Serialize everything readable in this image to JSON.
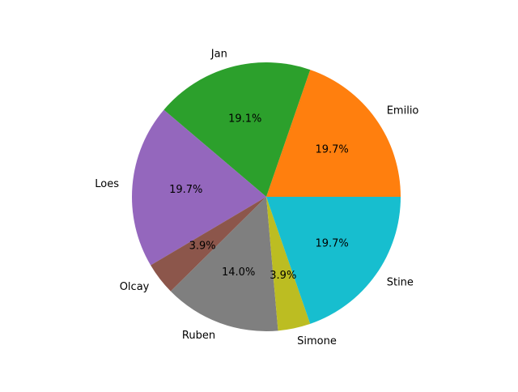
{
  "chart_data": {
    "type": "pie",
    "title": "",
    "slices": [
      {
        "label": "Emilio",
        "value": 19.7,
        "pct_label": "19.7%",
        "color": "#ff7f0e"
      },
      {
        "label": "Jan",
        "value": 19.1,
        "pct_label": "19.1%",
        "color": "#2ca02c"
      },
      {
        "label": "Loes",
        "value": 19.7,
        "pct_label": "19.7%",
        "color": "#9467bd"
      },
      {
        "label": "Olcay",
        "value": 3.9,
        "pct_label": "3.9%",
        "color": "#8c564b"
      },
      {
        "label": "Ruben",
        "value": 14.0,
        "pct_label": "14.0%",
        "color": "#7f7f7f"
      },
      {
        "label": "Simone",
        "value": 3.9,
        "pct_label": "3.9%",
        "color": "#bcbd22"
      },
      {
        "label": "Stine",
        "value": 19.7,
        "pct_label": "19.7%",
        "color": "#17becf"
      }
    ],
    "start_angle_deg": 0,
    "direction": "counterclockwise"
  }
}
